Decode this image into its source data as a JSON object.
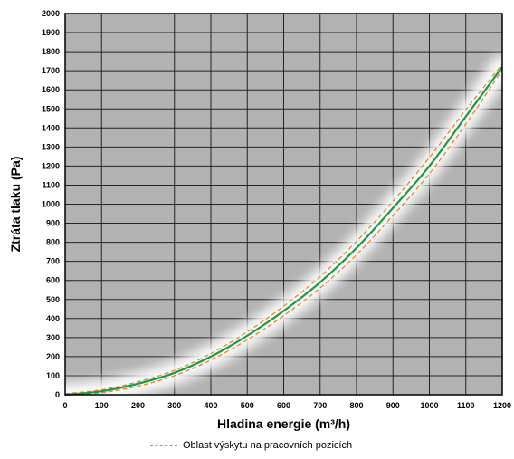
{
  "chart_data": {
    "type": "line",
    "title": "",
    "xlabel": "Hladina energie (m³/h)",
    "ylabel": "Ztráta tlaku (Pa)",
    "xlim": [
      0,
      1200
    ],
    "ylim": [
      0,
      2000
    ],
    "x_ticks": [
      "0",
      "100",
      "200",
      "300",
      "400",
      "500",
      "600",
      "700",
      "800",
      "900",
      "1000",
      "1100",
      "1200"
    ],
    "y_ticks": [
      "0",
      "100",
      "200",
      "300",
      "400",
      "500",
      "600",
      "700",
      "800",
      "900",
      "1000",
      "1100",
      "1200",
      "1300",
      "1400",
      "1500",
      "1600",
      "1700",
      "1800",
      "1900",
      "2000"
    ],
    "grid": true,
    "legend_position": "bottom",
    "colors": {
      "plot_background": "#b2b2b2",
      "grid": "#222222",
      "main_line": "#1a9a45",
      "band_line": "#e8862a",
      "glow": "#ffffff"
    },
    "x": [
      0,
      100,
      200,
      300,
      400,
      500,
      600,
      700,
      800,
      900,
      1000,
      1100,
      1200
    ],
    "series": [
      {
        "values": [
          0,
          18,
          58,
          115,
          200,
          310,
          440,
          590,
          770,
          980,
          1200,
          1460,
          1720
        ]
      },
      {
        "name": "Oblast výskytu na pracovních pozicích",
        "values": [
          5,
          26,
          68,
          128,
          216,
          330,
          465,
          620,
          805,
          1015,
          1245,
          1495,
          1735
        ]
      },
      {
        "values": [
          0,
          10,
          45,
          100,
          182,
          288,
          415,
          560,
          735,
          940,
          1160,
          1420,
          1705
        ]
      }
    ],
    "legend": {
      "label": "Oblast výskytu na pracovních pozicích"
    }
  }
}
